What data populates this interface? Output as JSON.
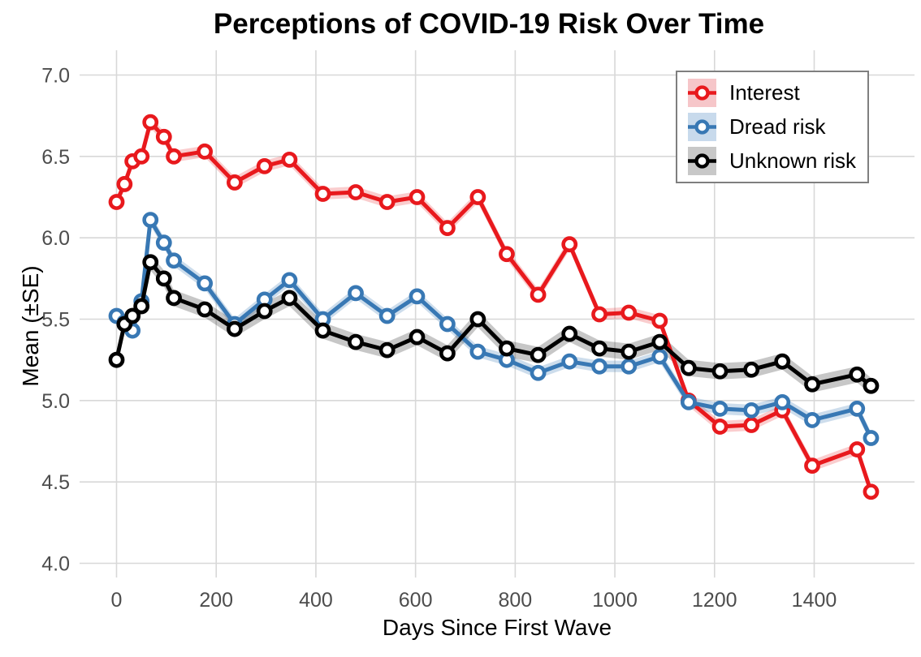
{
  "chart_data": {
    "type": "line",
    "title": "Perceptions of COVID-19 Risk Over Time",
    "xlabel": "Days Since First Wave",
    "ylabel": "Mean (±SE)",
    "xlim": [
      -70,
      1600
    ],
    "ylim": [
      3.85,
      7.1
    ],
    "grid": "major-only",
    "legend_position": "top-right-inside",
    "x_ticks": [
      {
        "value": 0,
        "label": "0"
      },
      {
        "value": 200,
        "label": "200"
      },
      {
        "value": 400,
        "label": "400"
      },
      {
        "value": 600,
        "label": "600"
      },
      {
        "value": 800,
        "label": "800"
      },
      {
        "value": 1000,
        "label": "1000"
      },
      {
        "value": 1200,
        "label": "1200"
      },
      {
        "value": 1400,
        "label": "1400"
      }
    ],
    "y_ticks": [
      {
        "value": 7.0,
        "label": "7.0"
      },
      {
        "value": 6.5,
        "label": "6.5"
      },
      {
        "value": 6.0,
        "label": "6.0"
      },
      {
        "value": 5.5,
        "label": "5.5"
      },
      {
        "value": 5.0,
        "label": "5.0"
      },
      {
        "value": 4.5,
        "label": "4.5"
      },
      {
        "value": 4.0,
        "label": "4.0"
      }
    ],
    "x": [
      0,
      16,
      32,
      50,
      68,
      95,
      115,
      177,
      237,
      297,
      347,
      414,
      480,
      543,
      603,
      664,
      725,
      783,
      846,
      909,
      969,
      1028,
      1090,
      1148,
      1211,
      1274,
      1336,
      1396,
      1486,
      1514
    ],
    "series": [
      {
        "name": "Interest",
        "color": "#e8191d",
        "ribbon": "rgba(233,28,32,0.22)",
        "key_bg": "#f6c6c9",
        "se": 0.035,
        "values": [
          6.22,
          6.33,
          6.47,
          6.5,
          6.71,
          6.62,
          6.5,
          6.53,
          6.34,
          6.44,
          6.48,
          6.27,
          6.28,
          6.22,
          6.25,
          6.06,
          6.25,
          5.9,
          5.65,
          5.96,
          5.53,
          5.54,
          5.49,
          5.0,
          4.84,
          4.85,
          4.94,
          4.6,
          4.7,
          4.44
        ]
      },
      {
        "name": "Dread risk",
        "color": "#3878b4",
        "ribbon": "rgba(56,120,180,0.25)",
        "key_bg": "#c8daec",
        "se": 0.035,
        "values": [
          5.52,
          5.48,
          5.43,
          5.61,
          6.11,
          5.97,
          5.86,
          5.72,
          5.47,
          5.62,
          5.74,
          5.5,
          5.66,
          5.52,
          5.64,
          5.47,
          5.3,
          5.25,
          5.17,
          5.24,
          5.21,
          5.21,
          5.27,
          4.99,
          4.95,
          4.94,
          4.99,
          4.88,
          4.95,
          4.77
        ]
      },
      {
        "name": "Unknown risk",
        "color": "#000000",
        "ribbon": "rgba(0,0,0,0.22)",
        "key_bg": "#c8c8c8",
        "se": 0.05,
        "values": [
          5.25,
          5.47,
          5.52,
          5.58,
          5.85,
          5.75,
          5.63,
          5.56,
          5.44,
          5.55,
          5.63,
          5.43,
          5.36,
          5.31,
          5.39,
          5.29,
          5.5,
          5.32,
          5.28,
          5.41,
          5.32,
          5.3,
          5.36,
          5.2,
          5.18,
          5.19,
          5.24,
          5.1,
          5.16,
          5.09
        ]
      }
    ]
  },
  "colors": {
    "grid": "#d8d8d8",
    "tick_text": "#4d4d4d",
    "legend_border": "#7f7f7f",
    "background": "#ffffff"
  }
}
